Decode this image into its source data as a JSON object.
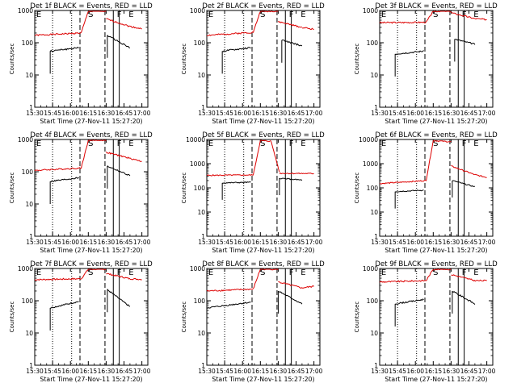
{
  "chart_data": [
    {
      "type": "line",
      "title": "Det 1f BLACK = Events, RED = LLD",
      "xlabel": "Start Time (27-Nov-11 15:27:20)",
      "ylabel": "Counts/sec",
      "xticks": [
        "15:30",
        "15:45",
        "16:00",
        "16:15",
        "16:30",
        "16:45",
        "17:00"
      ],
      "yticks": [
        "1",
        "10",
        "100",
        "1000"
      ],
      "ylim": [
        1,
        1000
      ],
      "log_y": true,
      "markers": [
        {
          "label": "E",
          "t": "15:30"
        },
        {
          "label": "S",
          "t": "16:15"
        },
        {
          "label": "F",
          "t": "16:39"
        },
        {
          "label": "E",
          "t": "16:49"
        }
      ],
      "series": [
        {
          "name": "RED = LLD",
          "color": "#dd0000",
          "segments": [
            {
              "t0": "15:30",
              "t1": "16:09",
              "v0": 170,
              "v1": 200
            },
            {
              "t0": "16:09",
              "t1": "16:15",
              "v0": 200,
              "v1": 950
            },
            {
              "t0": "16:15",
              "t1": "16:30",
              "v0": 950,
              "v1": 950
            },
            {
              "t0": "16:30",
              "t1": "16:50",
              "v0": 550,
              "v1": 320
            },
            {
              "t0": "16:50",
              "t1": "17:00",
              "v0": 320,
              "v1": 270
            }
          ]
        },
        {
          "name": "BLACK = Events",
          "color": "#000000",
          "segments": [
            {
              "t0": "15:43",
              "t1": "16:07",
              "v0": 55,
              "v1": 70
            },
            {
              "t0": "16:31",
              "t1": "16:50",
              "v0": 170,
              "v1": 70
            }
          ]
        }
      ]
    },
    {
      "type": "line",
      "title": "Det 2f BLACK = Events, RED = LLD",
      "xlabel": "Start Time (27-Nov-11 15:27:20)",
      "ylabel": "Counts/sec",
      "xticks": [
        "15:30",
        "15:45",
        "16:00",
        "16:15",
        "16:30",
        "16:45",
        "17:00"
      ],
      "yticks": [
        "1",
        "10",
        "100",
        "1000"
      ],
      "ylim": [
        1,
        1000
      ],
      "log_y": true,
      "markers": [
        {
          "label": "E",
          "t": "15:30"
        },
        {
          "label": "S",
          "t": "16:15"
        },
        {
          "label": "F",
          "t": "16:39"
        },
        {
          "label": "E",
          "t": "16:49"
        }
      ],
      "series": [
        {
          "name": "RED = LLD",
          "color": "#dd0000",
          "segments": [
            {
              "t0": "15:30",
              "t1": "16:09",
              "v0": 170,
              "v1": 210
            },
            {
              "t0": "16:09",
              "t1": "16:15",
              "v0": 210,
              "v1": 950
            },
            {
              "t0": "16:15",
              "t1": "16:30",
              "v0": 950,
              "v1": 950
            },
            {
              "t0": "16:30",
              "t1": "16:50",
              "v0": 450,
              "v1": 300
            },
            {
              "t0": "16:50",
              "t1": "17:00",
              "v0": 300,
              "v1": 260
            }
          ]
        },
        {
          "name": "BLACK = Events",
          "color": "#000000",
          "segments": [
            {
              "t0": "15:43",
              "t1": "16:07",
              "v0": 55,
              "v1": 70
            },
            {
              "t0": "16:33",
              "t1": "16:50",
              "v0": 120,
              "v1": 80
            }
          ]
        }
      ]
    },
    {
      "type": "line",
      "title": "Det 3f BLACK = Events, RED = LLD",
      "xlabel": "Start Time (27-Nov-11 15:27:20)",
      "ylabel": "Counts/sec",
      "xticks": [
        "15:30",
        "15:45",
        "16:00",
        "16:15",
        "16:30",
        "16:45",
        "17:00"
      ],
      "yticks": [
        "1",
        "10",
        "100",
        "1000"
      ],
      "ylim": [
        1,
        1000
      ],
      "log_y": true,
      "markers": [
        {
          "label": "E",
          "t": "15:30"
        },
        {
          "label": "S",
          "t": "16:15"
        },
        {
          "label": "F",
          "t": "16:39"
        },
        {
          "label": "E",
          "t": "16:49"
        }
      ],
      "series": [
        {
          "name": "RED = LLD",
          "color": "#dd0000",
          "segments": [
            {
              "t0": "15:30",
              "t1": "16:09",
              "v0": 420,
              "v1": 430
            },
            {
              "t0": "16:09",
              "t1": "16:15",
              "v0": 430,
              "v1": 950
            },
            {
              "t0": "16:15",
              "t1": "16:30",
              "v0": 950,
              "v1": 950
            },
            {
              "t0": "16:30",
              "t1": "16:50",
              "v0": 850,
              "v1": 560
            },
            {
              "t0": "16:50",
              "t1": "17:00",
              "v0": 560,
              "v1": 520
            }
          ]
        },
        {
          "name": "BLACK = Events",
          "color": "#000000",
          "segments": [
            {
              "t0": "15:43",
              "t1": "16:07",
              "v0": 45,
              "v1": 55
            },
            {
              "t0": "16:33",
              "t1": "16:50",
              "v0": 130,
              "v1": 90
            }
          ]
        }
      ]
    },
    {
      "type": "line",
      "title": "Det 4f BLACK = Events, RED = LLD",
      "xlabel": "Start Time (27-Nov-11 15:27:20)",
      "ylabel": "Counts/sec",
      "xticks": [
        "15:30",
        "15:45",
        "16:00",
        "16:15",
        "16:30",
        "16:45",
        "17:00"
      ],
      "yticks": [
        "1",
        "10",
        "100",
        "1000"
      ],
      "ylim": [
        1,
        1000
      ],
      "log_y": true,
      "markers": [
        {
          "label": "E",
          "t": "15:30"
        },
        {
          "label": "S",
          "t": "16:15"
        },
        {
          "label": "F",
          "t": "16:39"
        },
        {
          "label": "E",
          "t": "16:49"
        }
      ],
      "series": [
        {
          "name": "RED = LLD",
          "color": "#dd0000",
          "segments": [
            {
              "t0": "15:30",
              "t1": "16:09",
              "v0": 110,
              "v1": 130
            },
            {
              "t0": "16:09",
              "t1": "16:15",
              "v0": 130,
              "v1": 950
            },
            {
              "t0": "16:15",
              "t1": "16:30",
              "v0": 950,
              "v1": 950
            },
            {
              "t0": "16:30",
              "t1": "16:50",
              "v0": 400,
              "v1": 260
            },
            {
              "t0": "16:50",
              "t1": "17:00",
              "v0": 260,
              "v1": 210
            }
          ]
        },
        {
          "name": "BLACK = Events",
          "color": "#000000",
          "segments": [
            {
              "t0": "15:43",
              "t1": "16:07",
              "v0": 50,
              "v1": 65
            },
            {
              "t0": "16:31",
              "t1": "16:50",
              "v0": 150,
              "v1": 75
            }
          ]
        }
      ]
    },
    {
      "type": "line",
      "title": "Det 5f BLACK = Events, RED = LLD",
      "xlabel": "Start Time (27-Nov-11 15:27:20)",
      "ylabel": "Counts/sec",
      "xticks": [
        "15:30",
        "15:45",
        "16:00",
        "16:15",
        "16:30",
        "16:45",
        "17:00"
      ],
      "yticks": [
        "1",
        "10",
        "100",
        "1000",
        "10000"
      ],
      "ylim": [
        1,
        10000
      ],
      "log_y": true,
      "markers": [
        {
          "label": "E",
          "t": "15:30"
        },
        {
          "label": "S",
          "t": "16:15"
        },
        {
          "label": "F",
          "t": "16:39"
        },
        {
          "label": "E",
          "t": "16:49"
        }
      ],
      "series": [
        {
          "name": "RED = LLD",
          "color": "#dd0000",
          "segments": [
            {
              "t0": "15:30",
              "t1": "16:09",
              "v0": 330,
              "v1": 340
            },
            {
              "t0": "16:09",
              "t1": "16:15",
              "v0": 340,
              "v1": 9000
            },
            {
              "t0": "16:15",
              "t1": "16:24",
              "v0": 9000,
              "v1": 8500
            },
            {
              "t0": "16:24",
              "t1": "16:31",
              "v0": 8500,
              "v1": 450
            },
            {
              "t0": "16:31",
              "t1": "17:00",
              "v0": 400,
              "v1": 390
            }
          ]
        },
        {
          "name": "BLACK = Events",
          "color": "#000000",
          "segments": [
            {
              "t0": "15:43",
              "t1": "16:07",
              "v0": 160,
              "v1": 170
            },
            {
              "t0": "16:31",
              "t1": "16:50",
              "v0": 250,
              "v1": 210
            }
          ]
        }
      ]
    },
    {
      "type": "line",
      "title": "Det 6f BLACK = Events, RED = LLD",
      "xlabel": "Start Time (27-Nov-11 15:27:20)",
      "ylabel": "Counts/sec",
      "xticks": [
        "15:30",
        "15:45",
        "16:00",
        "16:15",
        "16:30",
        "16:45",
        "17:00"
      ],
      "yticks": [
        "1",
        "10",
        "100",
        "1000",
        "10000"
      ],
      "ylim": [
        1,
        10000
      ],
      "log_y": true,
      "markers": [
        {
          "label": "E",
          "t": "15:30"
        },
        {
          "label": "S",
          "t": "16:15"
        },
        {
          "label": "F",
          "t": "16:39"
        },
        {
          "label": "E",
          "t": "16:49"
        }
      ],
      "series": [
        {
          "name": "RED = LLD",
          "color": "#dd0000",
          "segments": [
            {
              "t0": "15:30",
              "t1": "16:09",
              "v0": 150,
              "v1": 200
            },
            {
              "t0": "16:09",
              "t1": "16:15",
              "v0": 200,
              "v1": 9000
            },
            {
              "t0": "16:15",
              "t1": "16:30",
              "v0": 9000,
              "v1": 8000
            },
            {
              "t0": "16:30",
              "t1": "16:50",
              "v0": 800,
              "v1": 350
            },
            {
              "t0": "16:50",
              "t1": "17:00",
              "v0": 350,
              "v1": 270
            }
          ]
        },
        {
          "name": "BLACK = Events",
          "color": "#000000",
          "segments": [
            {
              "t0": "15:43",
              "t1": "16:07",
              "v0": 70,
              "v1": 80
            },
            {
              "t0": "16:31",
              "t1": "16:50",
              "v0": 200,
              "v1": 110
            }
          ]
        }
      ]
    },
    {
      "type": "line",
      "title": "Det 7f BLACK = Events, RED = LLD",
      "xlabel": "Start Time (27-Nov-11 15:27:20)",
      "ylabel": "Counts/sec",
      "xticks": [
        "15:30",
        "15:45",
        "16:00",
        "16:15",
        "16:30",
        "16:45",
        "17:00"
      ],
      "yticks": [
        "1",
        "10",
        "100",
        "1000"
      ],
      "ylim": [
        1,
        1000
      ],
      "log_y": true,
      "markers": [
        {
          "label": "E",
          "t": "15:30"
        },
        {
          "label": "S",
          "t": "16:15"
        },
        {
          "label": "F",
          "t": "16:39"
        },
        {
          "label": "E",
          "t": "16:49"
        }
      ],
      "series": [
        {
          "name": "RED = LLD",
          "color": "#dd0000",
          "segments": [
            {
              "t0": "15:30",
              "t1": "16:09",
              "v0": 450,
              "v1": 480
            },
            {
              "t0": "16:09",
              "t1": "16:15",
              "v0": 480,
              "v1": 950
            },
            {
              "t0": "16:15",
              "t1": "16:30",
              "v0": 950,
              "v1": 950
            },
            {
              "t0": "16:30",
              "t1": "16:50",
              "v0": 700,
              "v1": 480
            },
            {
              "t0": "16:50",
              "t1": "17:00",
              "v0": 480,
              "v1": 460
            }
          ]
        },
        {
          "name": "BLACK = Events",
          "color": "#000000",
          "segments": [
            {
              "t0": "15:43",
              "t1": "16:07",
              "v0": 60,
              "v1": 95
            },
            {
              "t0": "16:31",
              "t1": "16:50",
              "v0": 220,
              "v1": 65
            }
          ]
        }
      ]
    },
    {
      "type": "line",
      "title": "Det 8f BLACK = Events, RED = LLD",
      "xlabel": "Start Time (27-Nov-11 15:27:20)",
      "ylabel": "Counts/sec",
      "xticks": [
        "15:30",
        "15:45",
        "16:00",
        "16:15",
        "16:30",
        "16:45",
        "17:00"
      ],
      "yticks": [
        "1",
        "10",
        "100",
        "1000"
      ],
      "ylim": [
        1,
        1000
      ],
      "log_y": true,
      "markers": [
        {
          "label": "E",
          "t": "15:30"
        },
        {
          "label": "S",
          "t": "16:15"
        },
        {
          "label": "F",
          "t": "16:39"
        },
        {
          "label": "E",
          "t": "16:49"
        }
      ],
      "series": [
        {
          "name": "RED = LLD",
          "color": "#dd0000",
          "segments": [
            {
              "t0": "15:30",
              "t1": "16:09",
              "v0": 200,
              "v1": 230
            },
            {
              "t0": "16:09",
              "t1": "16:15",
              "v0": 230,
              "v1": 950
            },
            {
              "t0": "16:15",
              "t1": "16:30",
              "v0": 950,
              "v1": 950
            },
            {
              "t0": "16:30",
              "t1": "16:50",
              "v0": 380,
              "v1": 250
            },
            {
              "t0": "16:50",
              "t1": "17:00",
              "v0": 250,
              "v1": 280
            }
          ]
        },
        {
          "name": "BLACK = Events",
          "color": "#000000",
          "segments": [
            {
              "t0": "15:30",
              "t1": "16:07",
              "v0": 60,
              "v1": 90
            },
            {
              "t0": "16:30",
              "t1": "16:50",
              "v0": 200,
              "v1": 80
            }
          ]
        }
      ]
    },
    {
      "type": "line",
      "title": "Det 9f BLACK = Events, RED = LLD",
      "xlabel": "Start Time (27-Nov-11 15:27:20)",
      "ylabel": "Counts/sec",
      "xticks": [
        "15:30",
        "15:45",
        "16:00",
        "16:15",
        "16:30",
        "16:45",
        "17:00"
      ],
      "yticks": [
        "1",
        "10",
        "100",
        "1000"
      ],
      "ylim": [
        1,
        1000
      ],
      "log_y": true,
      "markers": [
        {
          "label": "E",
          "t": "15:30"
        },
        {
          "label": "S",
          "t": "16:15"
        },
        {
          "label": "F",
          "t": "16:39"
        },
        {
          "label": "E",
          "t": "16:49"
        }
      ],
      "series": [
        {
          "name": "RED = LLD",
          "color": "#dd0000",
          "segments": [
            {
              "t0": "15:30",
              "t1": "16:09",
              "v0": 380,
              "v1": 420
            },
            {
              "t0": "16:09",
              "t1": "16:15",
              "v0": 420,
              "v1": 950
            },
            {
              "t0": "16:15",
              "t1": "16:30",
              "v0": 950,
              "v1": 950
            },
            {
              "t0": "16:30",
              "t1": "16:50",
              "v0": 650,
              "v1": 420
            },
            {
              "t0": "16:50",
              "t1": "17:00",
              "v0": 420,
              "v1": 420
            }
          ]
        },
        {
          "name": "BLACK = Events",
          "color": "#000000",
          "segments": [
            {
              "t0": "15:43",
              "t1": "16:07",
              "v0": 80,
              "v1": 110
            },
            {
              "t0": "16:31",
              "t1": "16:50",
              "v0": 200,
              "v1": 80
            }
          ]
        }
      ]
    }
  ]
}
